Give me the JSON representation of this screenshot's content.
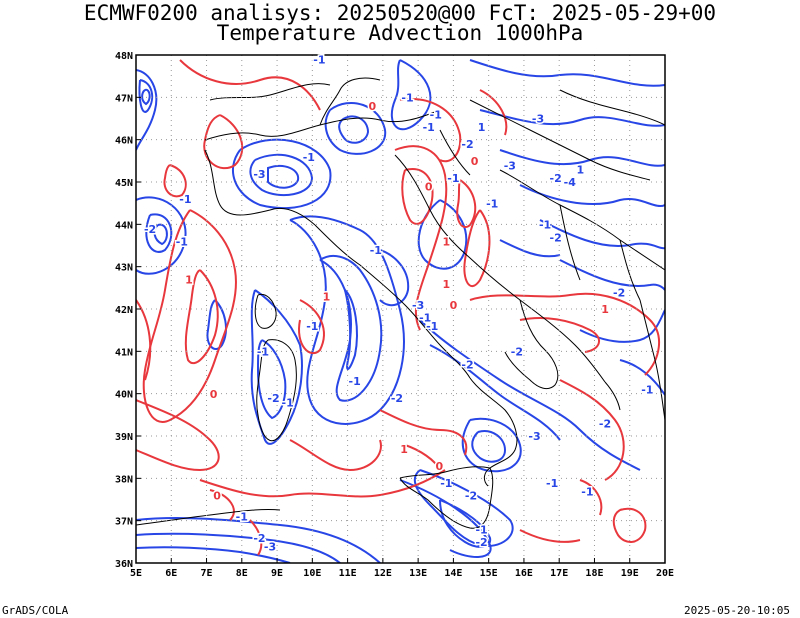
{
  "title_line1": "ECMWF0200 analisys: 20250520@00 FcT: 2025-05-29+00",
  "title_line2": "Temperature Advection 1000hPa",
  "footer_left": "GrADS/COLA",
  "footer_right": "2025-05-20-10:05",
  "map": {
    "lon_range": [
      5,
      20
    ],
    "lat_range": [
      36,
      48
    ],
    "x_ticks": [
      "5E",
      "6E",
      "7E",
      "8E",
      "9E",
      "10E",
      "11E",
      "12E",
      "13E",
      "14E",
      "15E",
      "16E",
      "17E",
      "18E",
      "19E",
      "20E"
    ],
    "y_ticks": [
      "36N",
      "37N",
      "38N",
      "39N",
      "40N",
      "41N",
      "42N",
      "43N",
      "44N",
      "45N",
      "46N",
      "47N",
      "48N"
    ],
    "grid": "dotted",
    "colors": {
      "positive": "#e8383d",
      "negative": "#2846e6",
      "coast": "#000000"
    }
  },
  "contour_labels": [
    {
      "text": "1",
      "lon": 17.6,
      "lat": 45.2,
      "sign": "neg"
    },
    {
      "text": "-1",
      "lon": 10.2,
      "lat": 47.8,
      "sign": "neg"
    },
    {
      "text": "-1",
      "lon": 12.7,
      "lat": 46.9,
      "sign": "neg"
    },
    {
      "text": "-1",
      "lon": 13.3,
      "lat": 46.2,
      "sign": "neg"
    },
    {
      "text": "-1",
      "lon": 13.5,
      "lat": 46.5,
      "sign": "neg"
    },
    {
      "text": "-3",
      "lon": 16.4,
      "lat": 46.4,
      "sign": "neg"
    },
    {
      "text": "-2",
      "lon": 14.4,
      "lat": 45.8,
      "sign": "neg"
    },
    {
      "text": "-3",
      "lon": 8.5,
      "lat": 45.1,
      "sign": "neg"
    },
    {
      "text": "-1",
      "lon": 9.9,
      "lat": 45.5,
      "sign": "neg"
    },
    {
      "text": "-1",
      "lon": 6.4,
      "lat": 44.5,
      "sign": "neg"
    },
    {
      "text": "-2",
      "lon": 5.4,
      "lat": 43.8,
      "sign": "neg"
    },
    {
      "text": "-1",
      "lon": 6.3,
      "lat": 43.5,
      "sign": "neg"
    },
    {
      "text": "-2",
      "lon": 16.9,
      "lat": 45.0,
      "sign": "neg"
    },
    {
      "text": "-4",
      "lon": 17.3,
      "lat": 44.9,
      "sign": "neg"
    },
    {
      "text": "-1",
      "lon": 15.1,
      "lat": 44.4,
      "sign": "neg"
    },
    {
      "text": "-1",
      "lon": 16.6,
      "lat": 43.9,
      "sign": "neg"
    },
    {
      "text": "-2",
      "lon": 16.9,
      "lat": 43.6,
      "sign": "neg"
    },
    {
      "text": "-1",
      "lon": 11.8,
      "lat": 43.3,
      "sign": "neg"
    },
    {
      "text": "-2",
      "lon": 18.7,
      "lat": 42.3,
      "sign": "neg"
    },
    {
      "text": "-1",
      "lon": 13.2,
      "lat": 41.7,
      "sign": "neg"
    },
    {
      "text": "-3",
      "lon": 13.0,
      "lat": 42.0,
      "sign": "neg"
    },
    {
      "text": "-1",
      "lon": 10.0,
      "lat": 41.5,
      "sign": "neg"
    },
    {
      "text": "-1",
      "lon": 13.4,
      "lat": 41.5,
      "sign": "neg"
    },
    {
      "text": "-1",
      "lon": 8.6,
      "lat": 40.9,
      "sign": "neg"
    },
    {
      "text": "-2",
      "lon": 15.8,
      "lat": 40.9,
      "sign": "neg"
    },
    {
      "text": "-2",
      "lon": 14.4,
      "lat": 40.6,
      "sign": "neg"
    },
    {
      "text": "-1",
      "lon": 11.2,
      "lat": 40.2,
      "sign": "neg"
    },
    {
      "text": "-2",
      "lon": 12.4,
      "lat": 39.8,
      "sign": "neg"
    },
    {
      "text": "-1",
      "lon": 19.5,
      "lat": 40.0,
      "sign": "neg"
    },
    {
      "text": "-2",
      "lon": 8.9,
      "lat": 39.8,
      "sign": "neg"
    },
    {
      "text": "-1",
      "lon": 9.3,
      "lat": 39.7,
      "sign": "neg"
    },
    {
      "text": "-2",
      "lon": 18.3,
      "lat": 39.2,
      "sign": "neg"
    },
    {
      "text": "-3",
      "lon": 16.3,
      "lat": 38.9,
      "sign": "neg"
    },
    {
      "text": "-1",
      "lon": 16.8,
      "lat": 37.8,
      "sign": "neg"
    },
    {
      "text": "-1",
      "lon": 17.8,
      "lat": 37.6,
      "sign": "neg"
    },
    {
      "text": "-1",
      "lon": 13.8,
      "lat": 37.8,
      "sign": "neg"
    },
    {
      "text": "-2",
      "lon": 14.5,
      "lat": 37.5,
      "sign": "neg"
    },
    {
      "text": "-1",
      "lon": 8.0,
      "lat": 37.0,
      "sign": "neg"
    },
    {
      "text": "-2",
      "lon": 8.5,
      "lat": 36.5,
      "sign": "neg"
    },
    {
      "text": "-3",
      "lon": 8.8,
      "lat": 36.3,
      "sign": "neg"
    },
    {
      "text": "-1",
      "lon": 14.8,
      "lat": 36.7,
      "sign": "neg"
    },
    {
      "text": "-2",
      "lon": 14.8,
      "lat": 36.4,
      "sign": "neg"
    },
    {
      "text": "-1",
      "lon": 14.0,
      "lat": 45.0,
      "sign": "neg"
    },
    {
      "text": "-3",
      "lon": 15.6,
      "lat": 45.3,
      "sign": "neg"
    },
    {
      "text": "1",
      "lon": 14.8,
      "lat": 46.2,
      "sign": "neg"
    },
    {
      "text": "0",
      "lon": 11.7,
      "lat": 46.7,
      "sign": "pos"
    },
    {
      "text": "0",
      "lon": 14.6,
      "lat": 45.4,
      "sign": "pos"
    },
    {
      "text": "0",
      "lon": 13.3,
      "lat": 44.8,
      "sign": "pos"
    },
    {
      "text": "1",
      "lon": 6.5,
      "lat": 42.6,
      "sign": "pos"
    },
    {
      "text": "1",
      "lon": 10.4,
      "lat": 42.2,
      "sign": "pos"
    },
    {
      "text": "0",
      "lon": 7.2,
      "lat": 39.9,
      "sign": "pos"
    },
    {
      "text": "1",
      "lon": 18.3,
      "lat": 41.9,
      "sign": "pos"
    },
    {
      "text": "0",
      "lon": 13.6,
      "lat": 38.2,
      "sign": "pos"
    },
    {
      "text": "1",
      "lon": 12.6,
      "lat": 38.6,
      "sign": "pos"
    },
    {
      "text": "0",
      "lon": 7.3,
      "lat": 37.5,
      "sign": "pos"
    },
    {
      "text": "1",
      "lon": 13.8,
      "lat": 42.5,
      "sign": "pos"
    },
    {
      "text": "1",
      "lon": 13.8,
      "lat": 43.5,
      "sign": "pos"
    },
    {
      "text": "0",
      "lon": 14.0,
      "lat": 42.0,
      "sign": "pos"
    }
  ]
}
